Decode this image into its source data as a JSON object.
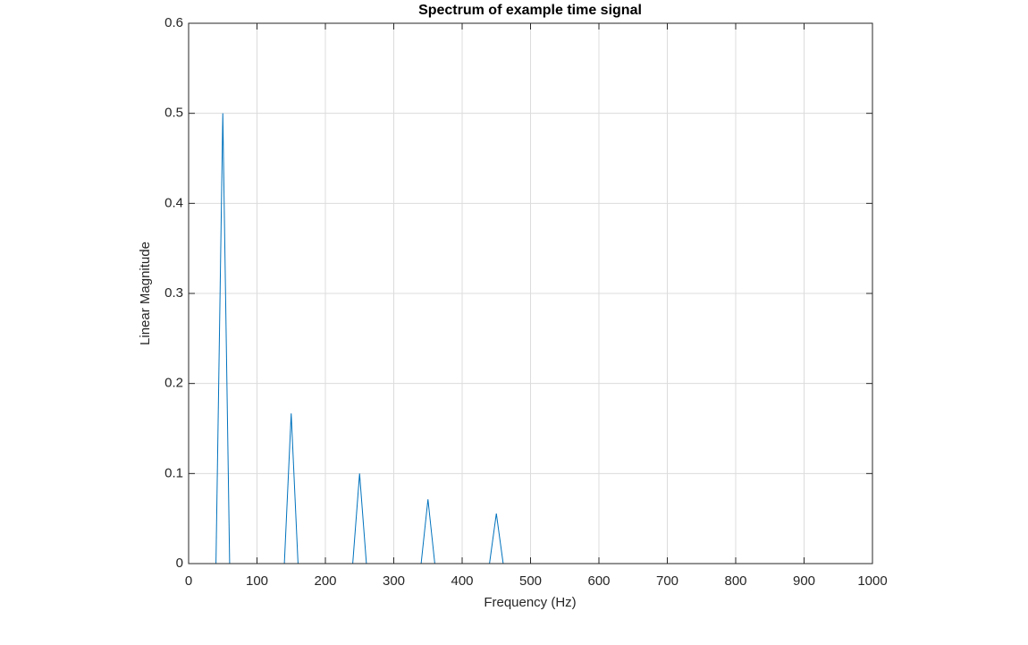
{
  "chart_data": {
    "type": "line",
    "title": "Spectrum of example time signal",
    "x_label": "Frequency (Hz)",
    "y_label": "Linear Magnitude",
    "x": [
      0,
      10,
      20,
      30,
      40,
      50,
      60,
      70,
      80,
      90,
      100,
      110,
      120,
      130,
      140,
      150,
      160,
      170,
      180,
      190,
      200,
      210,
      220,
      230,
      240,
      250,
      260,
      270,
      280,
      290,
      300,
      310,
      320,
      330,
      340,
      350,
      360,
      370,
      380,
      390,
      400,
      410,
      420,
      430,
      440,
      450,
      460,
      470,
      480,
      490,
      500,
      510,
      520,
      530,
      540,
      550,
      560,
      570,
      580,
      590,
      600,
      610,
      620,
      630,
      640,
      650,
      660,
      670,
      680,
      690,
      700,
      710,
      720,
      730,
      740,
      750,
      760,
      770,
      780,
      790,
      800,
      810,
      820,
      830,
      840,
      850,
      860,
      870,
      880,
      890,
      900,
      910,
      920,
      930,
      940,
      950,
      960,
      970,
      980,
      990,
      1000
    ],
    "series": [
      {
        "color": "#0072bd",
        "values": [
          0,
          0,
          0,
          0,
          0,
          0.5,
          0,
          0,
          0,
          0,
          0,
          0,
          0,
          0,
          0,
          0.1667,
          0,
          0,
          0,
          0,
          0,
          0,
          0,
          0,
          0,
          0.1,
          0,
          0,
          0,
          0,
          0,
          0,
          0,
          0,
          0,
          0.0714,
          0,
          0,
          0,
          0,
          0,
          0,
          0,
          0,
          0,
          0.0556,
          0,
          0,
          0,
          0,
          0,
          0,
          0,
          0,
          0,
          0,
          0,
          0,
          0,
          0,
          0,
          0,
          0,
          0,
          0,
          0,
          0,
          0,
          0,
          0,
          0,
          0,
          0,
          0,
          0,
          0,
          0,
          0,
          0,
          0,
          0,
          0,
          0,
          0,
          0,
          0,
          0,
          0,
          0,
          0,
          0,
          0,
          0,
          0,
          0,
          0,
          0,
          0,
          0,
          0,
          0
        ]
      }
    ],
    "xlim": [
      0,
      1000
    ],
    "xticks": [
      0,
      100,
      200,
      300,
      400,
      500,
      600,
      700,
      800,
      900,
      1000
    ],
    "ylim": [
      0,
      0.6
    ],
    "yticks": [
      0,
      0.1,
      0.2,
      0.3,
      0.4,
      0.5,
      0.6
    ],
    "grid": true
  }
}
